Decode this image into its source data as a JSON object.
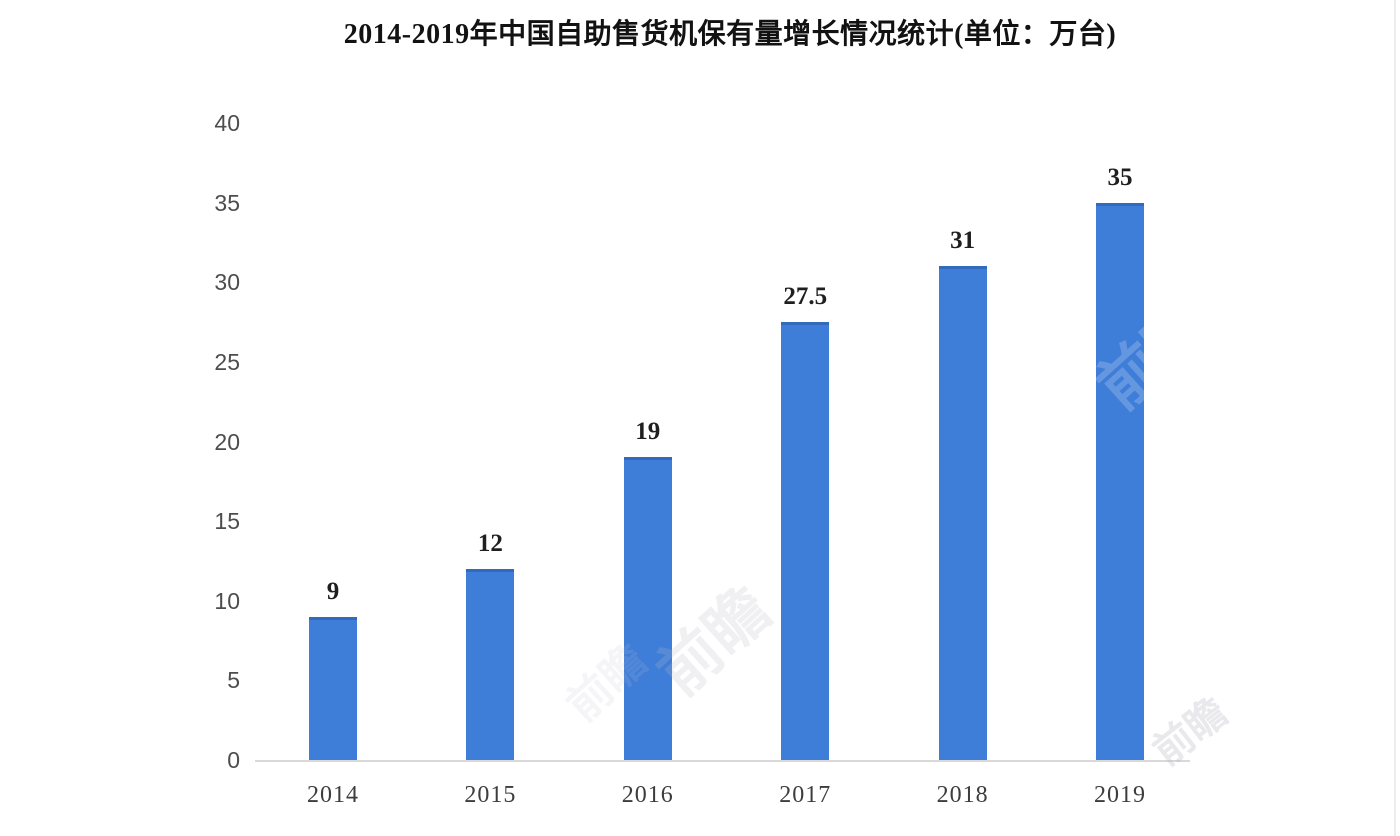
{
  "page": {
    "background": "#ffffff"
  },
  "chart_data": {
    "type": "bar",
    "title": "2014-2019年中国自助售货机保有量增长情况统计(单位：万台)",
    "categories": [
      "2014",
      "2015",
      "2016",
      "2017",
      "2018",
      "2019"
    ],
    "values": [
      9,
      12,
      19,
      27.5,
      31,
      35
    ],
    "value_labels": [
      "9",
      "12",
      "19",
      "27.5",
      "31",
      "35"
    ],
    "xlabel": "",
    "ylabel": "",
    "ylim": [
      0,
      40
    ],
    "yticks": [
      0,
      5,
      10,
      15,
      20,
      25,
      30,
      35,
      40
    ],
    "grid": false,
    "legend": "none",
    "bar_color": "#3e7ed9",
    "axis_line_color": "#d9d9d9",
    "title_color": "#121212",
    "tick_label_color": "#4d4d4d",
    "value_label_color": "#1f1f1f"
  },
  "watermark": {
    "text": "前瞻"
  }
}
